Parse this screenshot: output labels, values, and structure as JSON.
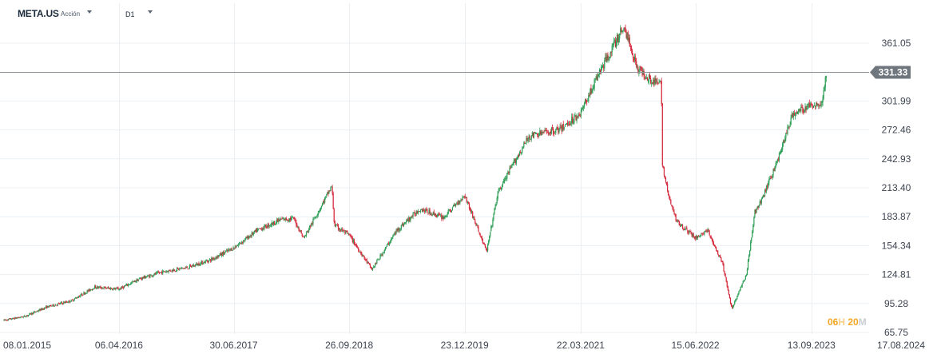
{
  "toolbar": {
    "symbol": "META.US",
    "asset_type": "Acción",
    "timeframe": "D1"
  },
  "countdown": {
    "hours": "06",
    "hours_unit": "H",
    "minutes": "20",
    "minutes_unit": "M"
  },
  "colors": {
    "up": "#2e9e56",
    "down": "#d6283b",
    "grid": "#eceff2",
    "price_line": "#8a9199",
    "label_bg": "#6f767e"
  },
  "chart_data": {
    "type": "candlestick",
    "title": "",
    "xlabel": "",
    "ylabel": "",
    "ylim": [
      65.75,
      380
    ],
    "y_ticks": [
      "361.05",
      "331.33",
      "301.99",
      "272.46",
      "242.93",
      "213.40",
      "183.87",
      "154.34",
      "124.81",
      "95.28",
      "65.75"
    ],
    "x_ticks": [
      "08.01.2015",
      "06.04.2016",
      "30.06.2017",
      "26.09.2018",
      "23.12.2019",
      "22.03.2021",
      "15.06.2022",
      "13.09.2023",
      "17.08.2024"
    ],
    "x_tick_dates": [
      "2015-01-08",
      "2016-04-06",
      "2017-06-30",
      "2018-09-26",
      "2019-12-23",
      "2021-03-22",
      "2022-06-15",
      "2023-09-13",
      "2024-08-17"
    ],
    "current_price": 331.33,
    "current_price_label": "331.33",
    "grid": true,
    "series": [
      {
        "x": [
          "2015-01-08",
          "2015-04-01",
          "2015-07-01",
          "2015-10-01",
          "2016-01-01",
          "2016-04-06",
          "2016-07-01",
          "2016-10-01",
          "2017-01-01",
          "2017-04-01",
          "2017-06-30",
          "2017-10-01",
          "2018-01-01",
          "2018-02-20",
          "2018-04-01",
          "2018-07-20",
          "2018-07-30",
          "2018-09-26",
          "2018-12-24",
          "2019-04-01",
          "2019-07-01",
          "2019-10-01",
          "2019-12-23",
          "2020-03-18",
          "2020-05-01",
          "2020-07-01",
          "2020-09-01",
          "2020-11-01",
          "2021-01-01",
          "2021-03-22",
          "2021-06-01",
          "2021-09-07",
          "2021-11-01",
          "2022-01-01",
          "2022-02-02",
          "2022-02-04",
          "2022-03-01",
          "2022-04-01",
          "2022-06-15",
          "2022-08-01",
          "2022-09-30",
          "2022-11-04",
          "2023-01-01",
          "2023-02-02",
          "2023-03-01",
          "2023-05-01",
          "2023-07-01",
          "2023-09-13",
          "2023-10-26",
          "2023-11-10"
        ],
        "values": [
          78,
          82,
          92,
          98,
          112,
          110,
          121,
          128,
          132,
          140,
          152,
          170,
          181,
          182,
          162,
          215,
          175,
          165,
          130,
          170,
          192,
          183,
          206,
          148,
          208,
          238,
          266,
          270,
          273,
          290,
          330,
          378,
          335,
          322,
          318,
          240,
          205,
          180,
          162,
          170,
          135,
          90,
          125,
          188,
          200,
          240,
          288,
          298,
          300,
          331
        ]
      }
    ]
  }
}
